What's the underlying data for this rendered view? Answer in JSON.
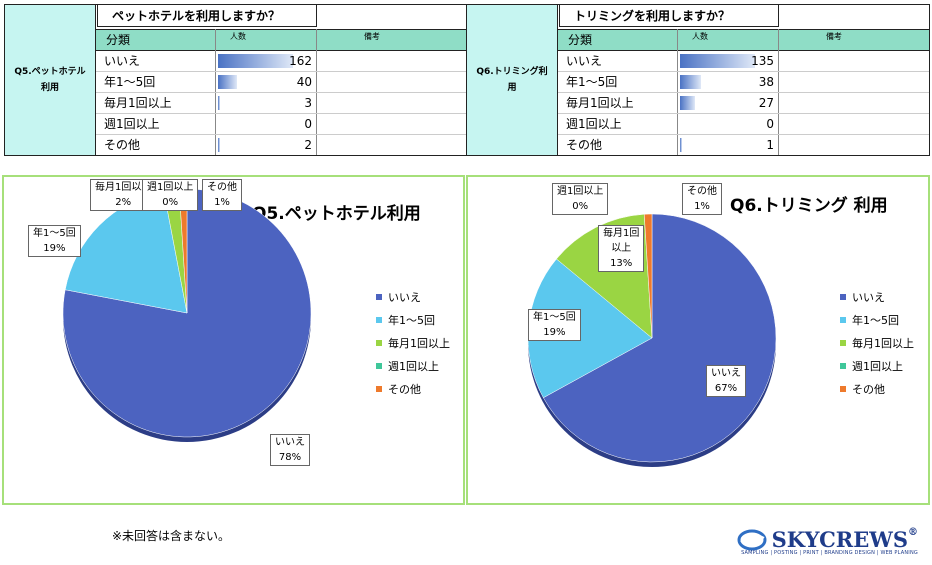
{
  "tables": [
    {
      "side_label_1": "Q5.ペットホテル",
      "side_label_2": "利用",
      "title": "ペットホテルを利用しますか？",
      "col_category": "分類",
      "col_count": "人数",
      "col_note": "備考",
      "rows": [
        {
          "label": "いいえ",
          "count": "162",
          "value": 162
        },
        {
          "label": "年1～5回",
          "count": "40",
          "value": 40
        },
        {
          "label": "毎月1回以上",
          "count": "3",
          "value": 3
        },
        {
          "label": "週1回以上",
          "count": "0",
          "value": 0
        },
        {
          "label": "その他",
          "count": "2",
          "value": 2
        }
      ]
    },
    {
      "side_label_1": "Q6.トリミング利",
      "side_label_2": "用",
      "title": "トリミングを利用しますか？",
      "col_category": "分類",
      "col_count": "人数",
      "col_note": "備考",
      "rows": [
        {
          "label": "いいえ",
          "count": "135",
          "value": 135
        },
        {
          "label": "年1～5回",
          "count": "38",
          "value": 38
        },
        {
          "label": "毎月1回以上",
          "count": "27",
          "value": 27
        },
        {
          "label": "週1回以上",
          "count": "0",
          "value": 0
        },
        {
          "label": "その他",
          "count": "1",
          "value": 1
        }
      ]
    }
  ],
  "chart_data": [
    {
      "type": "pie",
      "title": "Q5.ペットホテル利用",
      "categories": [
        "いいえ",
        "年1～5回",
        "毎月1回以上",
        "週1回以上",
        "その他"
      ],
      "values": [
        78,
        19,
        2,
        0,
        1
      ],
      "value_labels": [
        "78%",
        "19%",
        "2%",
        "0%",
        "1%"
      ],
      "colors": [
        "#4c63c0",
        "#5bc8ee",
        "#9ad543",
        "#3fc79a",
        "#ee7a2c"
      ],
      "legend_position": "right"
    },
    {
      "type": "pie",
      "title": "Q6.トリミング 利用",
      "categories": [
        "いいえ",
        "年1～5回",
        "毎月1回以上",
        "週1回以上",
        "その他"
      ],
      "values": [
        67,
        19,
        13,
        0,
        1
      ],
      "value_labels": [
        "67%",
        "19%",
        "13%",
        "0%",
        "1%"
      ],
      "colors": [
        "#4c63c0",
        "#5bc8ee",
        "#9ad543",
        "#3fc79a",
        "#ee7a2c"
      ],
      "legend_position": "right"
    }
  ],
  "footnote": "※未回答は含まない。",
  "logo": {
    "name": "SKYCREWS",
    "registered": "®",
    "tagline": "SAMPLING | POSTING | PRINT | BRANDING DESIGN | WEB PLANING"
  }
}
